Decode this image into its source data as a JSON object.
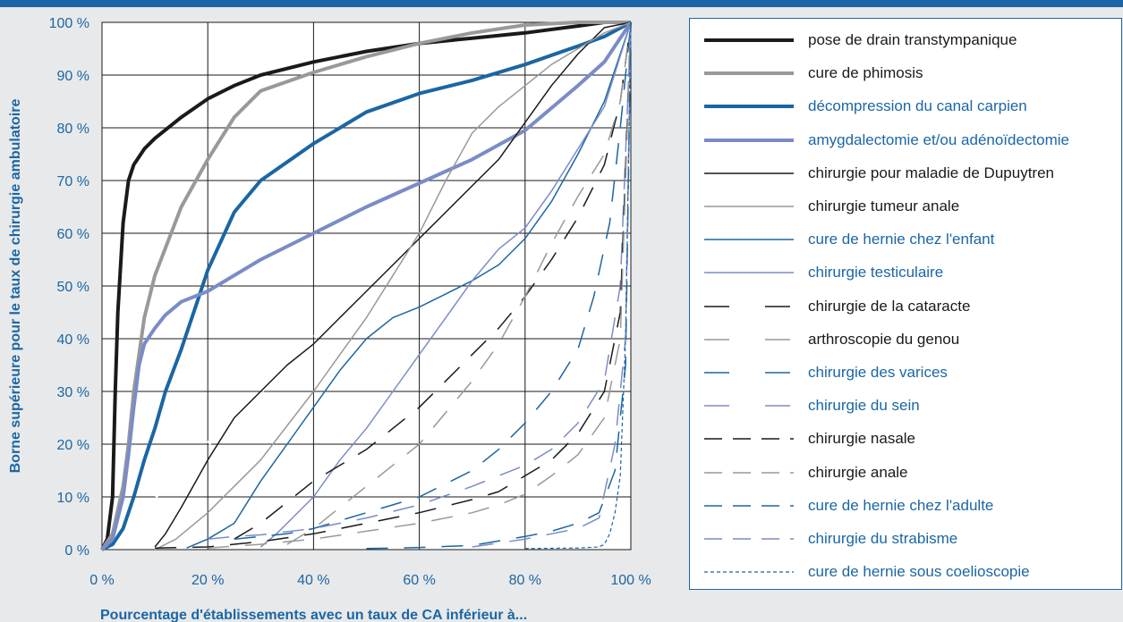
{
  "chart_data": {
    "type": "line",
    "xlabel": "Pourcentage d'établissements avec un taux de CA inférieur à...",
    "ylabel": "Borne supérieure pour le taux de chirurgie ambulatoire",
    "xlim": [
      0,
      100
    ],
    "ylim": [
      0,
      100
    ],
    "x_ticks": [
      "0 %",
      "20 %",
      "40 %",
      "60 %",
      "80 %",
      "100 %"
    ],
    "y_ticks": [
      "0 %",
      "10 %",
      "20 %",
      "30 %",
      "40 %",
      "50 %",
      "60 %",
      "70 %",
      "80 %",
      "90 %",
      "100 %"
    ],
    "grid": true,
    "legend_position": "right",
    "diagonal": {
      "color": "#ffffff",
      "dash": "dashed"
    },
    "series": [
      {
        "name": "pose de drain transtympanique",
        "color": "#1a1a1a",
        "width": 4,
        "dash": "solid",
        "points": [
          [
            0,
            0
          ],
          [
            1,
            2
          ],
          [
            2,
            10
          ],
          [
            2.5,
            30
          ],
          [
            3,
            45
          ],
          [
            4,
            62
          ],
          [
            5,
            70
          ],
          [
            6,
            73
          ],
          [
            8,
            76
          ],
          [
            10,
            78
          ],
          [
            15,
            82
          ],
          [
            20,
            85.5
          ],
          [
            25,
            88
          ],
          [
            30,
            90
          ],
          [
            40,
            92.5
          ],
          [
            50,
            94.5
          ],
          [
            60,
            96
          ],
          [
            70,
            97
          ],
          [
            80,
            98
          ],
          [
            90,
            99.3
          ],
          [
            95,
            100
          ],
          [
            100,
            100
          ]
        ]
      },
      {
        "name": "cure de phimosis",
        "color": "#999999",
        "width": 4,
        "dash": "solid",
        "points": [
          [
            0,
            0
          ],
          [
            2,
            3
          ],
          [
            4,
            12
          ],
          [
            5,
            20
          ],
          [
            6,
            30
          ],
          [
            8,
            44
          ],
          [
            10,
            52
          ],
          [
            15,
            65
          ],
          [
            20,
            74
          ],
          [
            25,
            82
          ],
          [
            30,
            87
          ],
          [
            40,
            90.5
          ],
          [
            50,
            93.5
          ],
          [
            60,
            96
          ],
          [
            70,
            98
          ],
          [
            80,
            99.5
          ],
          [
            90,
            100
          ],
          [
            100,
            100
          ]
        ]
      },
      {
        "name": "décompression du canal carpien",
        "color": "#1b66a4",
        "width": 4,
        "dash": "solid",
        "points": [
          [
            0,
            0
          ],
          [
            2,
            1
          ],
          [
            4,
            4
          ],
          [
            6,
            10
          ],
          [
            8,
            17
          ],
          [
            10,
            23
          ],
          [
            12,
            30
          ],
          [
            15,
            38
          ],
          [
            18,
            47
          ],
          [
            20,
            53
          ],
          [
            25,
            64
          ],
          [
            30,
            70
          ],
          [
            40,
            77
          ],
          [
            50,
            83
          ],
          [
            60,
            86.5
          ],
          [
            70,
            89
          ],
          [
            80,
            92
          ],
          [
            90,
            95.5
          ],
          [
            95,
            97.3
          ],
          [
            100,
            100
          ]
        ]
      },
      {
        "name": "amygdalectomie et/ou adénoïdectomie",
        "color": "#7a8cc7",
        "width": 4,
        "dash": "solid",
        "points": [
          [
            0,
            0
          ],
          [
            2,
            2
          ],
          [
            4,
            10
          ],
          [
            5,
            18
          ],
          [
            6,
            27
          ],
          [
            7,
            35
          ],
          [
            8,
            39
          ],
          [
            10,
            42
          ],
          [
            12,
            44.5
          ],
          [
            15,
            47
          ],
          [
            20,
            49
          ],
          [
            30,
            55
          ],
          [
            40,
            60
          ],
          [
            50,
            65
          ],
          [
            60,
            69.5
          ],
          [
            70,
            74
          ],
          [
            80,
            79.5
          ],
          [
            90,
            88
          ],
          [
            95,
            92.5
          ],
          [
            100,
            100
          ]
        ]
      },
      {
        "name": "chirurgie pour maladie de Dupuytren",
        "color": "#1a1a1a",
        "width": 1.5,
        "dash": "solid",
        "points": [
          [
            10,
            0.5
          ],
          [
            12,
            3
          ],
          [
            15,
            8
          ],
          [
            20,
            17
          ],
          [
            25,
            25
          ],
          [
            30,
            30
          ],
          [
            35,
            35
          ],
          [
            40,
            39
          ],
          [
            45,
            44
          ],
          [
            50,
            49
          ],
          [
            55,
            54
          ],
          [
            60,
            59
          ],
          [
            65,
            64
          ],
          [
            70,
            69
          ],
          [
            75,
            74
          ],
          [
            80,
            81
          ],
          [
            85,
            88
          ],
          [
            90,
            94
          ],
          [
            95,
            99
          ],
          [
            100,
            100
          ]
        ]
      },
      {
        "name": "chirurgie tumeur anale",
        "color": "#999999",
        "width": 1.5,
        "dash": "solid",
        "points": [
          [
            10,
            0
          ],
          [
            14,
            2
          ],
          [
            20,
            7
          ],
          [
            30,
            17
          ],
          [
            40,
            30
          ],
          [
            45,
            37
          ],
          [
            50,
            44
          ],
          [
            55,
            52
          ],
          [
            60,
            60
          ],
          [
            65,
            70
          ],
          [
            70,
            79
          ],
          [
            75,
            84
          ],
          [
            80,
            88
          ],
          [
            85,
            92
          ],
          [
            90,
            95
          ],
          [
            95,
            98
          ],
          [
            100,
            100
          ]
        ]
      },
      {
        "name": "cure de hernie chez l'enfant",
        "color": "#1b66a4",
        "width": 1.5,
        "dash": "solid",
        "points": [
          [
            16,
            0.3
          ],
          [
            20,
            2
          ],
          [
            25,
            5
          ],
          [
            30,
            13
          ],
          [
            35,
            20
          ],
          [
            40,
            27
          ],
          [
            45,
            34
          ],
          [
            50,
            40
          ],
          [
            55,
            44
          ],
          [
            60,
            46
          ],
          [
            65,
            48.5
          ],
          [
            70,
            51
          ],
          [
            75,
            54
          ],
          [
            80,
            59
          ],
          [
            85,
            66
          ],
          [
            90,
            75
          ],
          [
            95,
            85
          ],
          [
            100,
            100
          ]
        ]
      },
      {
        "name": "chirurgie testiculaire",
        "color": "#7a8cc7",
        "width": 1.5,
        "dash": "solid",
        "points": [
          [
            30,
            0.5
          ],
          [
            33,
            3
          ],
          [
            36,
            6
          ],
          [
            40,
            10
          ],
          [
            45,
            17
          ],
          [
            50,
            23
          ],
          [
            55,
            30
          ],
          [
            60,
            37
          ],
          [
            65,
            44
          ],
          [
            70,
            51
          ],
          [
            75,
            57
          ],
          [
            80,
            61
          ],
          [
            85,
            68
          ],
          [
            90,
            76
          ],
          [
            95,
            84
          ],
          [
            100,
            100
          ]
        ]
      },
      {
        "name": "chirurgie de la cataracte",
        "color": "#1a1a1a",
        "width": 1.5,
        "dash": "dashed",
        "points": [
          [
            25,
            2
          ],
          [
            30,
            5
          ],
          [
            35,
            9
          ],
          [
            40,
            13
          ],
          [
            45,
            16
          ],
          [
            50,
            19
          ],
          [
            55,
            23
          ],
          [
            60,
            27
          ],
          [
            65,
            32
          ],
          [
            70,
            37
          ],
          [
            75,
            42
          ],
          [
            80,
            48
          ],
          [
            85,
            55
          ],
          [
            90,
            63
          ],
          [
            95,
            73
          ],
          [
            98,
            85
          ],
          [
            100,
            100
          ]
        ]
      },
      {
        "name": "arthroscopie du genou",
        "color": "#999999",
        "width": 1.5,
        "dash": "dashed",
        "points": [
          [
            35,
            1
          ],
          [
            40,
            4
          ],
          [
            45,
            8
          ],
          [
            50,
            12
          ],
          [
            55,
            16
          ],
          [
            60,
            20
          ],
          [
            65,
            26
          ],
          [
            70,
            32
          ],
          [
            75,
            39
          ],
          [
            80,
            48
          ],
          [
            85,
            58
          ],
          [
            90,
            67
          ],
          [
            95,
            75
          ],
          [
            98,
            85
          ],
          [
            100,
            100
          ]
        ]
      },
      {
        "name": "chirurgie des varices",
        "color": "#1b66a4",
        "width": 1.5,
        "dash": "dashed",
        "points": [
          [
            25,
            2
          ],
          [
            30,
            2.5
          ],
          [
            35,
            3
          ],
          [
            40,
            4
          ],
          [
            45,
            5.5
          ],
          [
            50,
            7
          ],
          [
            55,
            8.5
          ],
          [
            60,
            10
          ],
          [
            65,
            12.5
          ],
          [
            70,
            15
          ],
          [
            75,
            19
          ],
          [
            80,
            24
          ],
          [
            85,
            30
          ],
          [
            90,
            38
          ],
          [
            93,
            48
          ],
          [
            96,
            62
          ],
          [
            98,
            80
          ],
          [
            100,
            100
          ]
        ]
      },
      {
        "name": "chirurgie du sein",
        "color": "#7a8cc7",
        "width": 1.5,
        "dash": "dashed",
        "points": [
          [
            20,
            2
          ],
          [
            25,
            2.5
          ],
          [
            30,
            2.8
          ],
          [
            40,
            4
          ],
          [
            50,
            6
          ],
          [
            60,
            8.5
          ],
          [
            70,
            12
          ],
          [
            75,
            14
          ],
          [
            80,
            16
          ],
          [
            85,
            19
          ],
          [
            90,
            24
          ],
          [
            95,
            32
          ],
          [
            98,
            50
          ],
          [
            100,
            100
          ]
        ]
      },
      {
        "name": "chirurgie nasale",
        "color": "#1a1a1a",
        "width": 1.5,
        "dash": "dashed",
        "points": [
          [
            10,
            0.3
          ],
          [
            20,
            0.5
          ],
          [
            30,
            1.5
          ],
          [
            40,
            3
          ],
          [
            50,
            5
          ],
          [
            60,
            7
          ],
          [
            70,
            9.5
          ],
          [
            75,
            11
          ],
          [
            80,
            14
          ],
          [
            85,
            17
          ],
          [
            90,
            22
          ],
          [
            95,
            30
          ],
          [
            98,
            45
          ],
          [
            100,
            100
          ]
        ]
      },
      {
        "name": "chirurgie anale",
        "color": "#999999",
        "width": 1.5,
        "dash": "dashed",
        "points": [
          [
            20,
            0.3
          ],
          [
            30,
            1
          ],
          [
            40,
            2
          ],
          [
            50,
            3.5
          ],
          [
            60,
            5
          ],
          [
            70,
            7
          ],
          [
            75,
            8.5
          ],
          [
            80,
            10.5
          ],
          [
            85,
            14
          ],
          [
            90,
            18
          ],
          [
            95,
            25
          ],
          [
            98,
            40
          ],
          [
            100,
            100
          ]
        ]
      },
      {
        "name": "cure de hernie chez l'adulte",
        "color": "#1b66a4",
        "width": 1.5,
        "dash": "dashed",
        "points": [
          [
            50,
            0.2
          ],
          [
            60,
            0.4
          ],
          [
            70,
            0.8
          ],
          [
            80,
            2.5
          ],
          [
            85,
            3.5
          ],
          [
            90,
            5
          ],
          [
            94,
            7
          ],
          [
            97,
            15
          ],
          [
            99,
            35
          ],
          [
            100,
            100
          ]
        ]
      },
      {
        "name": "chirurgie du strabisme",
        "color": "#7a8cc7",
        "width": 1.5,
        "dash": "dashed",
        "points": [
          [
            70,
            0.5
          ],
          [
            80,
            2
          ],
          [
            85,
            3
          ],
          [
            90,
            4
          ],
          [
            94,
            6
          ],
          [
            97,
            20
          ],
          [
            99,
            40
          ],
          [
            100,
            100
          ]
        ]
      },
      {
        "name": "cure de hernie sous coelioscopie",
        "color": "#1b66a4",
        "width": 1.2,
        "dash": "dotted",
        "points": [
          [
            80,
            0.2
          ],
          [
            90,
            0.3
          ],
          [
            94,
            0.5
          ],
          [
            95,
            1
          ],
          [
            96,
            3
          ],
          [
            97,
            7
          ],
          [
            98,
            14
          ],
          [
            99,
            40
          ],
          [
            100,
            100
          ]
        ]
      }
    ]
  }
}
